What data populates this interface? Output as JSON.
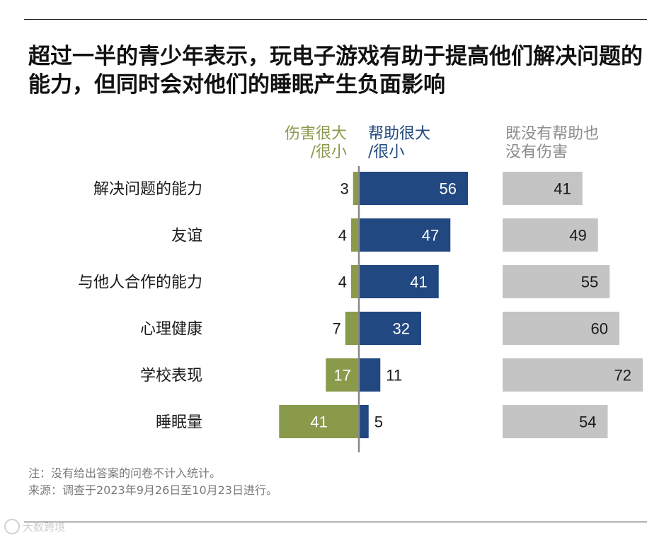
{
  "title": "超过一半的青少年表示，玩电子游戏有助于提高他们解决问题的能力，但同时会对他们的睡眠产生负面影响",
  "chart_data": {
    "type": "bar",
    "title": "超过一半的青少年表示，玩电子游戏有助于提高他们解决问题的能力，但同时会对他们的睡眠产生负面影响",
    "categories": [
      "解决问题的能力",
      "友谊",
      "与他人合作的能力",
      "心理健康",
      "学校表现",
      "睡眠量"
    ],
    "series": [
      {
        "name": "伤害很大/很小",
        "color": "#8a9a4b",
        "values": [
          3,
          4,
          4,
          7,
          17,
          41
        ]
      },
      {
        "name": "帮助很大/很小",
        "color": "#214880",
        "values": [
          56,
          47,
          41,
          32,
          11,
          5
        ]
      },
      {
        "name": "既没有帮助也没有伤害",
        "color": "#c4c4c4",
        "values": [
          41,
          49,
          55,
          60,
          72,
          54
        ]
      }
    ],
    "headers": {
      "harm": [
        "伤害很大",
        "/很小"
      ],
      "help": [
        "帮助很大",
        "/很小"
      ],
      "neither": [
        "既没有帮助也",
        "没有伤害"
      ]
    },
    "xlabel": "",
    "ylabel": ""
  },
  "notes": {
    "note": "注：没有给出答案的问卷不计入统计。",
    "source": "来源：调查于2023年9月26日至10月23日进行。"
  },
  "watermark": "大数跨境",
  "colors": {
    "harm": "#8a9a4b",
    "help": "#214880",
    "neither": "#c4c4c4",
    "axis": "#888888"
  }
}
